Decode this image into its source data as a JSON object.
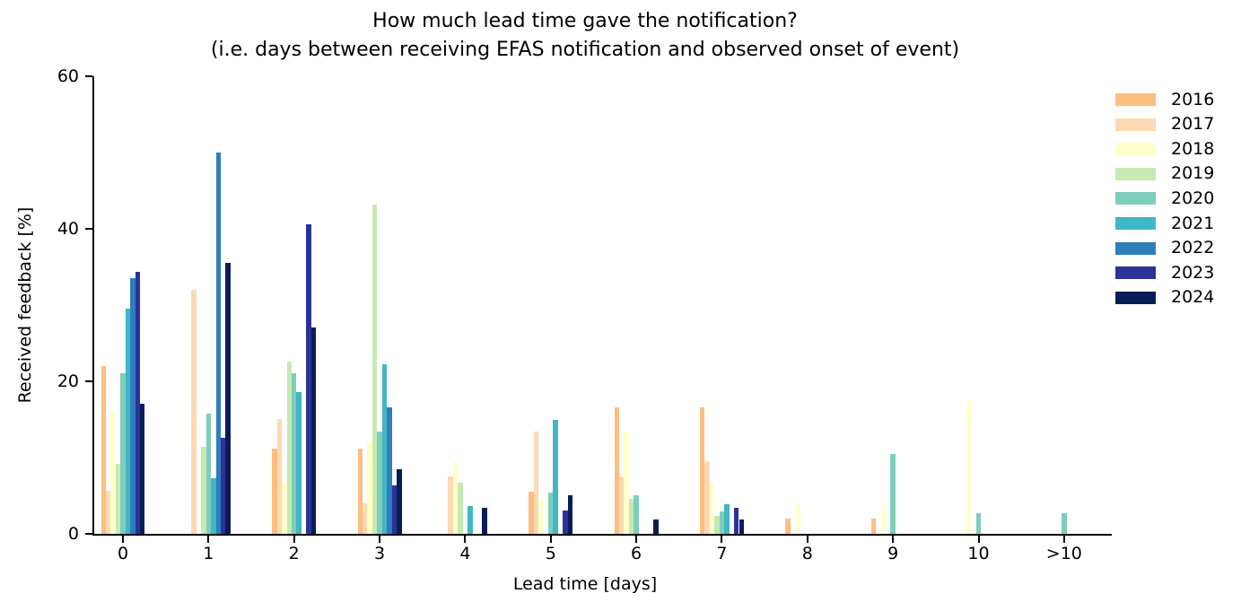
{
  "title": {
    "line1": "How much lead time gave the notification?",
    "line2": "(i.e. days between receiving EFAS notification and observed onset of event)"
  },
  "y_axis": {
    "label": "Received feedback [%]",
    "ticks": [
      0,
      20,
      40,
      60
    ]
  },
  "x_axis": {
    "label": "Lead time [days]"
  },
  "chart_data": {
    "type": "bar",
    "title": "How much lead time gave the notification? (i.e. days between receiving EFAS notification and observed onset of event)",
    "xlabel": "Lead time [days]",
    "ylabel": "Received feedback [%]",
    "ylim": [
      0,
      60
    ],
    "grid": false,
    "legend_position": "upper right outside",
    "categories": [
      "0",
      "1",
      "2",
      "3",
      "4",
      "5",
      "6",
      "7",
      "8",
      "9",
      "10",
      ">10"
    ],
    "series": [
      {
        "name": "2016",
        "color": "#fdbe7f",
        "values": [
          22.0,
          0,
          11.2,
          11.2,
          0,
          5.5,
          16.6,
          16.6,
          2.0,
          2.0,
          0,
          0
        ]
      },
      {
        "name": "2017",
        "color": "#fdd9b4",
        "values": [
          5.6,
          32.0,
          15.1,
          4.0,
          7.5,
          13.4,
          7.5,
          9.5,
          0,
          0,
          0,
          0
        ]
      },
      {
        "name": "2018",
        "color": "#ffffcc",
        "values": [
          16.0,
          0,
          6.7,
          12.0,
          9.4,
          4.5,
          13.4,
          6.7,
          3.9,
          3.9,
          17.4,
          0
        ]
      },
      {
        "name": "2019",
        "color": "#c7e9b4",
        "values": [
          9.2,
          11.4,
          22.6,
          43.2,
          6.7,
          0,
          4.6,
          2.4,
          0,
          0,
          0,
          0
        ]
      },
      {
        "name": "2020",
        "color": "#7fcdbb",
        "values": [
          21.1,
          15.8,
          21.1,
          13.4,
          0,
          5.4,
          5.1,
          2.9,
          0,
          10.5,
          2.7,
          2.7
        ]
      },
      {
        "name": "2021",
        "color": "#41b6c4",
        "values": [
          29.5,
          7.3,
          18.6,
          22.2,
          3.6,
          14.9,
          0,
          3.9,
          0,
          0,
          0,
          0
        ]
      },
      {
        "name": "2022",
        "color": "#2e7ebc",
        "values": [
          33.5,
          50.0,
          0,
          16.6,
          0,
          0,
          0,
          0,
          0,
          0,
          0,
          0
        ]
      },
      {
        "name": "2023",
        "color": "#2b329b",
        "values": [
          34.4,
          12.6,
          40.6,
          6.4,
          0,
          3.1,
          0,
          3.4,
          0,
          0,
          0,
          0
        ]
      },
      {
        "name": "2024",
        "color": "#081d58",
        "values": [
          17.1,
          35.5,
          27.1,
          8.5,
          3.4,
          5.1,
          1.9,
          1.9,
          0,
          0,
          0,
          0
        ]
      }
    ]
  }
}
